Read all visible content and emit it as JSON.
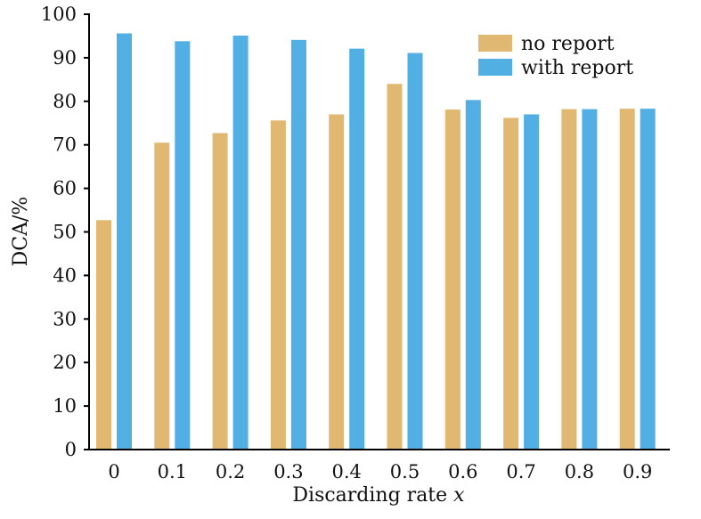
{
  "chart_data": {
    "type": "bar",
    "title": "",
    "xlabel": "Discarding rate",
    "xlabel_var": "x",
    "ylabel": "DCA/%",
    "ylim": [
      0,
      100
    ],
    "yticks": [
      0,
      10,
      20,
      30,
      40,
      50,
      60,
      70,
      80,
      90,
      100
    ],
    "categories": [
      "0",
      "0.1",
      "0.2",
      "0.3",
      "0.4",
      "0.5",
      "0.6",
      "0.7",
      "0.8",
      "0.9"
    ],
    "series": [
      {
        "name": "no report",
        "color": "#E0B872",
        "values": [
          52.7,
          70.5,
          72.7,
          75.6,
          77.0,
          84.0,
          78.1,
          76.2,
          78.2,
          78.3
        ]
      },
      {
        "name": "with report",
        "color": "#52AFE3",
        "values": [
          95.6,
          93.8,
          95.1,
          94.1,
          92.1,
          91.1,
          80.3,
          77.0,
          78.2,
          78.3
        ]
      }
    ],
    "legend": "top-right",
    "grid": false
  }
}
